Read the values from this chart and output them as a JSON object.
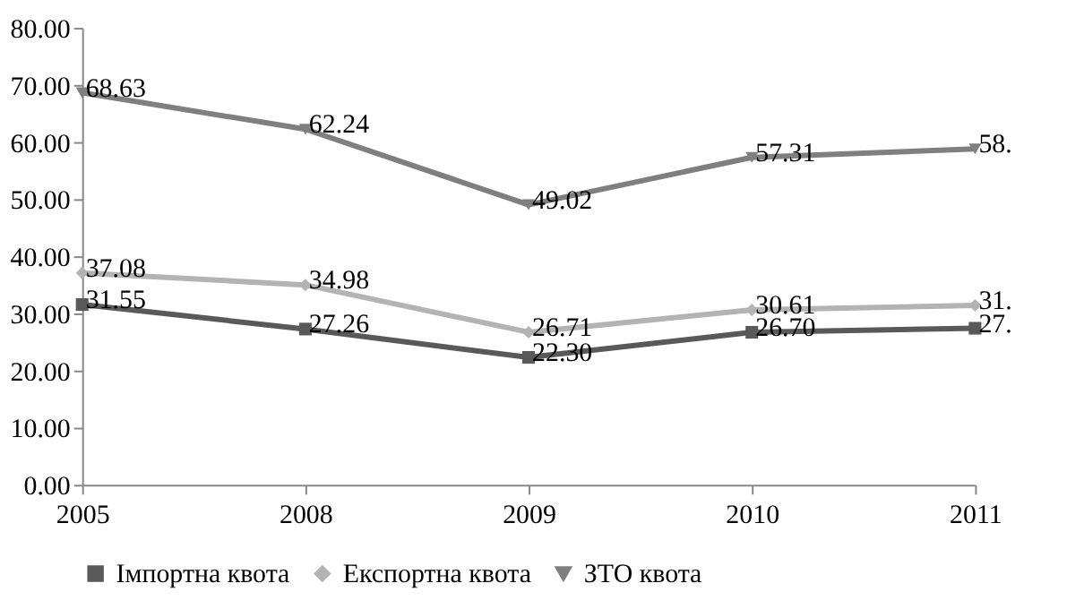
{
  "chart_data": {
    "type": "line",
    "categories": [
      "2005",
      "2008",
      "2009",
      "2010",
      "2011"
    ],
    "series": [
      {
        "name": "Імпортна квота",
        "color": "#595959",
        "marker": "square",
        "values": [
          31.55,
          27.26,
          22.3,
          26.7,
          27.4
        ],
        "value_labels": [
          "31.55",
          "27.26",
          "22.30",
          "26.70",
          null
        ]
      },
      {
        "name": "Експортна квота",
        "color": "#b3b3b3",
        "marker": "diamond",
        "values": [
          37.08,
          34.98,
          26.71,
          30.61,
          31.4
        ],
        "value_labels": [
          "37.08",
          "34.98",
          "26.71",
          "30.61",
          null
        ]
      },
      {
        "name": "ЗТО квота",
        "color": "#7f7f7f",
        "marker": "triangle",
        "values": [
          68.63,
          62.24,
          49.02,
          57.31,
          58.8
        ],
        "value_labels": [
          "68.63",
          "62.24",
          "49.02",
          "57.31",
          null
        ]
      }
    ],
    "annotations": [
      {
        "text": "27.",
        "x": "2011",
        "y": 27.4
      },
      {
        "text": "31.",
        "x": "2011",
        "y": 31.4
      },
      {
        "text": "58.",
        "x": "2011",
        "y": 58.8
      }
    ],
    "ylim": [
      0,
      80
    ],
    "yticks": [
      {
        "value": 0,
        "label": "0.00"
      },
      {
        "value": 10,
        "label": "10.00"
      },
      {
        "value": 20,
        "label": "20.00"
      },
      {
        "value": 30,
        "label": "30.00"
      },
      {
        "value": 40,
        "label": "40.00"
      },
      {
        "value": 50,
        "label": "50.00"
      },
      {
        "value": 60,
        "label": "60.00"
      },
      {
        "value": 70,
        "label": "70.00"
      },
      {
        "value": 80,
        "label": "80.00"
      }
    ],
    "grid": false,
    "legend": "bottom",
    "line_style": "solid"
  }
}
